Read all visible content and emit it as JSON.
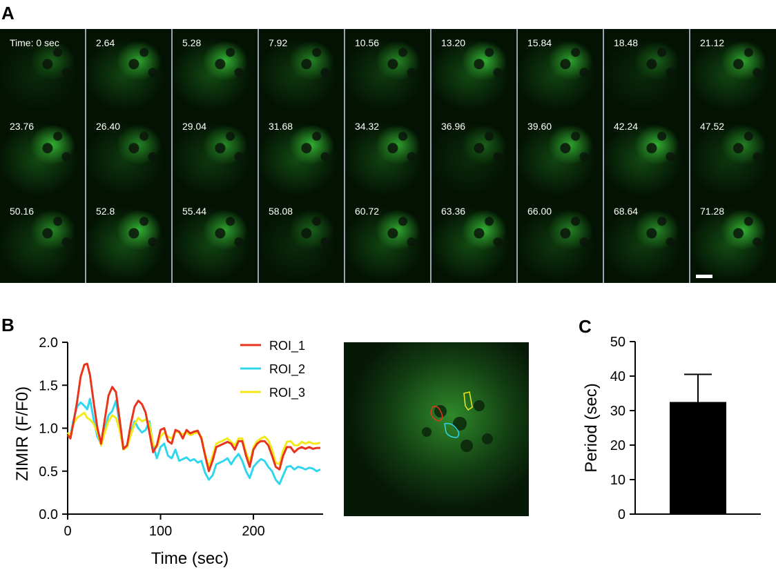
{
  "panel_labels": {
    "a": "A",
    "b": "B",
    "c": "C"
  },
  "time_stamps": [
    "Time: 0 sec",
    "2.64",
    "5.28",
    "7.92",
    "10.56",
    "13.20",
    "15.84",
    "18.48",
    "21.12",
    "23.76",
    "26.40",
    "29.04",
    "31.68",
    "34.32",
    "36.96",
    "39.60",
    "42.24",
    "47.52",
    "50.16",
    "52.8",
    "55.44",
    "58.08",
    "60.72",
    "63.36",
    "66.00",
    "68.64",
    "71.28"
  ],
  "colors": {
    "roi_1": "#e8341c",
    "roi_2": "#2fd6ee",
    "roi_3": "#f2ea1a",
    "fluorescence": "#2fc23a",
    "bar": "#000000"
  },
  "chart_data": [
    {
      "type": "line",
      "xlabel": "Time (sec)",
      "ylabel": "ZIMIR (F/F0)",
      "xlim": [
        0,
        275
      ],
      "ylim": [
        0.0,
        2.0
      ],
      "xticks": [
        0,
        100,
        200
      ],
      "yticks": [
        "0.0",
        "0.5",
        "1.0",
        "1.5",
        "2.0"
      ],
      "legend_position": "top-right",
      "series": [
        {
          "name": "ROI_1",
          "color": "#e8341c",
          "x": [
            0,
            3,
            6,
            10,
            14,
            18,
            21,
            24,
            28,
            32,
            36,
            40,
            44,
            48,
            52,
            56,
            60,
            64,
            68,
            72,
            76,
            80,
            84,
            88,
            92,
            96,
            100,
            104,
            108,
            112,
            116,
            120,
            124,
            128,
            132,
            136,
            140,
            144,
            148,
            152,
            156,
            160,
            164,
            168,
            172,
            176,
            180,
            184,
            188,
            192,
            196,
            200,
            204,
            208,
            212,
            216,
            220,
            224,
            228,
            232,
            236,
            240,
            244,
            248,
            252,
            256,
            260,
            264,
            268,
            272
          ],
          "y": [
            0.92,
            0.88,
            1.05,
            1.3,
            1.6,
            1.74,
            1.75,
            1.62,
            1.3,
            1.0,
            0.82,
            1.1,
            1.38,
            1.48,
            1.42,
            1.1,
            0.76,
            0.8,
            1.05,
            1.25,
            1.32,
            1.28,
            1.18,
            0.95,
            0.72,
            0.8,
            0.98,
            1.0,
            0.85,
            0.82,
            0.98,
            0.96,
            0.88,
            0.98,
            0.94,
            0.96,
            0.97,
            0.88,
            0.68,
            0.5,
            0.62,
            0.78,
            0.8,
            0.82,
            0.84,
            0.82,
            0.75,
            0.85,
            0.85,
            0.68,
            0.55,
            0.75,
            0.82,
            0.85,
            0.85,
            0.8,
            0.68,
            0.55,
            0.52,
            0.68,
            0.78,
            0.78,
            0.72,
            0.76,
            0.78,
            0.76,
            0.78,
            0.76,
            0.77,
            0.77
          ]
        },
        {
          "name": "ROI_2",
          "color": "#2fd6ee",
          "x": [
            0,
            3,
            6,
            10,
            14,
            18,
            21,
            24,
            28,
            32,
            36,
            40,
            44,
            48,
            52,
            56,
            60,
            64,
            68,
            72,
            76,
            80,
            84,
            88,
            92,
            96,
            100,
            104,
            108,
            112,
            116,
            120,
            124,
            128,
            132,
            136,
            140,
            144,
            148,
            152,
            156,
            160,
            164,
            168,
            172,
            176,
            180,
            184,
            188,
            192,
            196,
            200,
            204,
            208,
            212,
            216,
            220,
            224,
            228,
            232,
            236,
            240,
            244,
            248,
            252,
            256,
            260,
            264,
            268,
            272
          ],
          "y": [
            0.9,
            0.92,
            1.08,
            1.25,
            1.3,
            1.26,
            1.22,
            1.34,
            1.1,
            0.9,
            0.82,
            0.98,
            1.15,
            1.2,
            1.32,
            1.05,
            0.76,
            0.78,
            0.95,
            1.08,
            1.0,
            0.95,
            0.98,
            1.08,
            0.8,
            0.65,
            0.78,
            0.82,
            0.68,
            0.65,
            0.75,
            0.62,
            0.64,
            0.66,
            0.62,
            0.64,
            0.6,
            0.62,
            0.48,
            0.4,
            0.45,
            0.58,
            0.6,
            0.62,
            0.65,
            0.58,
            0.65,
            0.7,
            0.62,
            0.5,
            0.42,
            0.55,
            0.6,
            0.64,
            0.62,
            0.55,
            0.5,
            0.4,
            0.35,
            0.45,
            0.55,
            0.56,
            0.52,
            0.55,
            0.54,
            0.52,
            0.54,
            0.53,
            0.5,
            0.52
          ]
        },
        {
          "name": "ROI_3",
          "color": "#f2ea1a",
          "x": [
            0,
            3,
            6,
            10,
            14,
            18,
            21,
            24,
            28,
            32,
            36,
            40,
            44,
            48,
            52,
            56,
            60,
            64,
            68,
            72,
            76,
            80,
            84,
            88,
            92,
            96,
            100,
            104,
            108,
            112,
            116,
            120,
            124,
            128,
            132,
            136,
            140,
            144,
            148,
            152,
            156,
            160,
            164,
            168,
            172,
            176,
            180,
            184,
            188,
            192,
            196,
            200,
            204,
            208,
            212,
            216,
            220,
            224,
            228,
            232,
            236,
            240,
            244,
            248,
            252,
            256,
            260,
            264,
            268,
            272
          ],
          "y": [
            0.95,
            0.9,
            1.05,
            1.12,
            1.15,
            1.18,
            1.12,
            1.1,
            1.05,
            0.95,
            0.8,
            0.95,
            1.08,
            1.15,
            1.12,
            0.98,
            0.75,
            0.78,
            0.92,
            1.05,
            1.12,
            1.08,
            1.1,
            1.05,
            0.8,
            0.78,
            0.9,
            0.95,
            0.9,
            0.88,
            0.96,
            0.95,
            0.93,
            0.95,
            0.92,
            0.94,
            0.95,
            0.9,
            0.7,
            0.55,
            0.68,
            0.82,
            0.84,
            0.86,
            0.88,
            0.84,
            0.8,
            0.88,
            0.88,
            0.72,
            0.6,
            0.78,
            0.85,
            0.88,
            0.9,
            0.86,
            0.75,
            0.6,
            0.58,
            0.74,
            0.84,
            0.85,
            0.8,
            0.8,
            0.84,
            0.82,
            0.84,
            0.82,
            0.82,
            0.83
          ]
        }
      ]
    },
    {
      "type": "bar",
      "xlabel": "",
      "ylabel": "Period (sec)",
      "ylim": [
        0,
        50
      ],
      "yticks": [
        "0",
        "10",
        "20",
        "30",
        "40",
        "50"
      ],
      "categories": [
        ""
      ],
      "values": [
        32.5
      ],
      "error": [
        8.0
      ]
    }
  ]
}
